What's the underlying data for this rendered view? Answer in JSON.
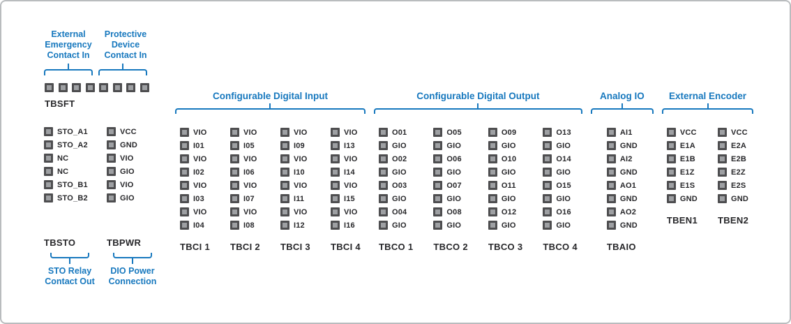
{
  "colors": {
    "accent": "#1778be",
    "ink": "#27272a",
    "pin_outer": "#4e4e50",
    "pin_inner": "#9ea0a3",
    "canvas_border": "#b9bcbe"
  },
  "safety": {
    "labels": [
      "External\nEmergency\nContact In",
      "Protective\nDevice\nContact In"
    ],
    "pin_count": 8,
    "block_label": "TBSFT"
  },
  "left_blocks": [
    {
      "name": "TBSTO",
      "pins": [
        "STO_A1",
        "STO_A2",
        "NC",
        "NC",
        "STO_B1",
        "STO_B2"
      ],
      "footer": "STO Relay\nContact Out"
    },
    {
      "name": "TBPWR",
      "pins": [
        "VCC",
        "GND",
        "VIO",
        "GIO",
        "VIO",
        "GIO"
      ],
      "footer": "DIO Power\nConnection"
    }
  ],
  "groups": [
    {
      "header": "Configurable Digital Input",
      "columns": [
        {
          "name": "TBCI 1",
          "pins": [
            "VIO",
            "I01",
            "VIO",
            "I02",
            "VIO",
            "I03",
            "VIO",
            "I04"
          ]
        },
        {
          "name": "TBCI 2",
          "pins": [
            "VIO",
            "I05",
            "VIO",
            "I06",
            "VIO",
            "I07",
            "VIO",
            "I08"
          ]
        },
        {
          "name": "TBCI 3",
          "pins": [
            "VIO",
            "I09",
            "VIO",
            "I10",
            "VIO",
            "I11",
            "VIO",
            "I12"
          ]
        },
        {
          "name": "TBCI 4",
          "pins": [
            "VIO",
            "I13",
            "VIO",
            "I14",
            "VIO",
            "I15",
            "VIO",
            "I16"
          ]
        }
      ]
    },
    {
      "header": "Configurable Digital Output",
      "columns": [
        {
          "name": "TBCO 1",
          "pins": [
            "O01",
            "GIO",
            "O02",
            "GIO",
            "O03",
            "GIO",
            "O04",
            "GIO"
          ]
        },
        {
          "name": "TBCO 2",
          "pins": [
            "O05",
            "GIO",
            "O06",
            "GIO",
            "O07",
            "GIO",
            "O08",
            "GIO"
          ]
        },
        {
          "name": "TBCO 3",
          "pins": [
            "O09",
            "GIO",
            "O10",
            "GIO",
            "O11",
            "GIO",
            "O12",
            "GIO"
          ]
        },
        {
          "name": "TBCO 4",
          "pins": [
            "O13",
            "GIO",
            "O14",
            "GIO",
            "O15",
            "GIO",
            "O16",
            "GIO"
          ]
        }
      ]
    },
    {
      "header": "Analog IO",
      "columns": [
        {
          "name": "TBAIO",
          "pins": [
            "AI1",
            "GND",
            "AI2",
            "GND",
            "AO1",
            "GND",
            "AO2",
            "GND"
          ]
        }
      ]
    },
    {
      "header": "External Encoder",
      "columns": [
        {
          "name": "TBEN1",
          "pins": [
            "VCC",
            "E1A",
            "E1B",
            "E1Z",
            "E1S",
            "GND"
          ]
        },
        {
          "name": "TBEN2",
          "pins": [
            "VCC",
            "E2A",
            "E2B",
            "E2Z",
            "E2S",
            "GND"
          ]
        }
      ]
    }
  ]
}
